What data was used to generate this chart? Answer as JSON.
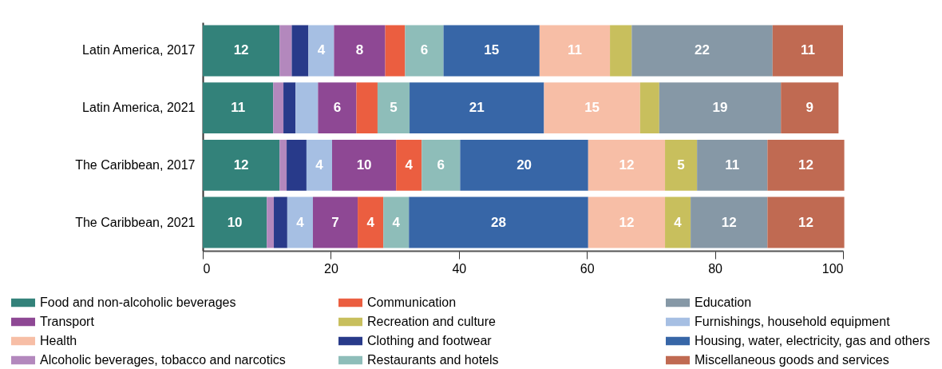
{
  "chart_data": {
    "type": "bar",
    "orientation": "horizontal",
    "stacked": true,
    "categories": [
      "Latin America, 2017",
      "Latin America, 2021",
      "The Caribbean, 2017",
      "The Caribbean, 2021"
    ],
    "series": [
      {
        "name": "Food and non-alcoholic beverages",
        "color": "#33827a",
        "values": [
          12,
          11,
          12,
          10
        ],
        "value_labels": [
          "12",
          "11",
          "12",
          "10"
        ]
      },
      {
        "name": "Alcoholic beverages, tobacco and narcotics",
        "color": "#b388bd",
        "values": [
          1.9,
          1.6,
          1.1,
          1.1
        ],
        "value_labels": [
          null,
          null,
          null,
          null
        ]
      },
      {
        "name": "Clothing and footwear",
        "color": "#283a8a",
        "values": [
          2.6,
          1.9,
          3.1,
          2.1
        ],
        "value_labels": [
          null,
          null,
          null,
          null
        ]
      },
      {
        "name": "Furnishings, household equipment",
        "color": "#a6bfe3",
        "values": [
          4,
          3.5,
          4,
          4
        ],
        "value_labels": [
          "4",
          null,
          "4",
          "4"
        ]
      },
      {
        "name": "Transport",
        "color": "#8e4894",
        "values": [
          8,
          6,
          10,
          7
        ],
        "value_labels": [
          "8",
          "6",
          "10",
          "7"
        ]
      },
      {
        "name": "Communication",
        "color": "#eb5e40",
        "values": [
          3.1,
          3.3,
          4,
          4
        ],
        "value_labels": [
          null,
          null,
          "4",
          "4"
        ]
      },
      {
        "name": "Restaurants and hotels",
        "color": "#8ebdb9",
        "values": [
          6,
          5,
          6,
          4
        ],
        "value_labels": [
          "6",
          "5",
          "6",
          "4"
        ]
      },
      {
        "name": "Housing, water, electricity, gas and others",
        "color": "#3766a7",
        "values": [
          15,
          21,
          20,
          28
        ],
        "value_labels": [
          "15",
          "21",
          "20",
          "28"
        ]
      },
      {
        "name": "Health",
        "color": "#f7bea6",
        "values": [
          11,
          15,
          12,
          12
        ],
        "value_labels": [
          "11",
          "15",
          "12",
          "12"
        ]
      },
      {
        "name": "Recreation and culture",
        "color": "#c8bf5d",
        "values": [
          3.4,
          3,
          5,
          4
        ],
        "value_labels": [
          null,
          null,
          "5",
          "4"
        ]
      },
      {
        "name": "Education",
        "color": "#8698a6",
        "values": [
          22,
          19,
          11,
          12
        ],
        "value_labels": [
          "22",
          "19",
          "11",
          "12"
        ]
      },
      {
        "name": "Miscellaneous goods and services",
        "color": "#c06a52",
        "values": [
          11,
          9,
          12,
          12
        ],
        "value_labels": [
          "11",
          "9",
          "12",
          "12"
        ]
      }
    ],
    "xlim": [
      0,
      100
    ],
    "xticks": [
      0,
      20,
      40,
      60,
      80,
      100
    ],
    "grid": false,
    "legend": "bottom"
  }
}
